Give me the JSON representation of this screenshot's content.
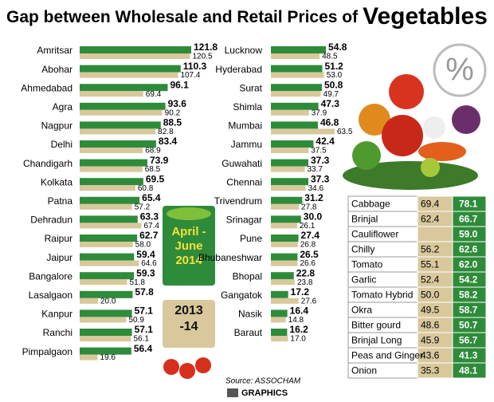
{
  "title": "Gap between Wholesale and Retail Prices of",
  "title_emphasis": "Vegetables",
  "percent_symbol": "%",
  "source": "Source: ASSOCHAM",
  "credit": "GRAPHICS",
  "chart_data": [
    {
      "type": "bar",
      "categories": [
        "Amritsar",
        "Abohar",
        "Ahmedabad",
        "Agra",
        "Nagpur",
        "Delhi",
        "Chandigarh",
        "Kolkata",
        "Patna",
        "Dehradun",
        "Raipur",
        "Jaipur",
        "Bangalore",
        "Lasalgaon",
        "Kanpur",
        "Ranchi",
        "Pimpalgaon"
      ],
      "series": [
        {
          "name": "April -June 2014",
          "color": "#2e8b3a",
          "values": [
            121.8,
            110.3,
            96.1,
            93.6,
            88.5,
            83.4,
            73.9,
            69.5,
            65.4,
            63.3,
            62.7,
            59.4,
            59.3,
            57.8,
            57.1,
            57.1,
            56.4
          ]
        },
        {
          "name": "2013 -14",
          "color": "#d8c89c",
          "values": [
            120.5,
            107.4,
            69.4,
            90.2,
            82.8,
            68.9,
            68.5,
            60.8,
            57.2,
            67.4,
            58,
            64.6,
            51.8,
            20,
            50.9,
            56.1,
            19.6
          ],
          "value_labels": [
            "120.5",
            "107.4",
            "69.4",
            "90.2",
            "82.8",
            "68.9",
            "68.5",
            "60.8",
            "57.2",
            "67.4",
            "58.0",
            "64.6",
            "51.8",
            "20.0",
            "50.9",
            "56.1",
            "19.6"
          ]
        }
      ]
    },
    {
      "type": "bar",
      "categories": [
        "Lucknow",
        "Hyderabad",
        "Surat",
        "Shimla",
        "Mumbai",
        "Jammu",
        "Guwahati",
        "Chennai",
        "Trivendrum",
        "Srinagar",
        "Pune",
        "Bhubaneshwar",
        "Bhopal",
        "Gangatok",
        "Nasik",
        "Baraut"
      ],
      "series": [
        {
          "color": "#2e8b3a",
          "values": [
            54.8,
            51.2,
            50.8,
            47.3,
            46.8,
            42.4,
            37.3,
            37.3,
            31.2,
            30,
            27.4,
            26.5,
            22.8,
            17.2,
            16.4,
            16.2
          ],
          "value_labels": [
            "54.8",
            "51.2",
            "50.8",
            "47.3",
            "46.8",
            "42.4",
            "37.3",
            "37.3",
            "31.2",
            "30.0",
            "27.4",
            "26.5",
            "22.8",
            "17.2",
            "16.4",
            "16.2"
          ]
        },
        {
          "color": "#d8c89c",
          "values": [
            48.5,
            53,
            49.7,
            37.9,
            63.5,
            37.5,
            33.7,
            34.6,
            27.8,
            26.1,
            26.8,
            26.6,
            23.8,
            27.6,
            14.8,
            17
          ],
          "value_labels": [
            "48.5",
            "53.0",
            "49.7",
            "37.9",
            "63.5",
            "37.5",
            "33.7",
            "34.6",
            "27.8",
            "26.1",
            "26.8",
            "26.6",
            "23.8",
            "27.6",
            "14.8",
            "17.0"
          ]
        }
      ]
    }
  ],
  "table": {
    "rows": [
      [
        "Cabbage",
        "69.4",
        "78.1"
      ],
      [
        "Brinjal",
        "62.4",
        "66.7"
      ],
      [
        "Cauliflower",
        null,
        "59.0"
      ],
      [
        "Chilly",
        "56.2",
        "62.6"
      ],
      [
        "Tomato",
        "55.1",
        "62.0"
      ],
      [
        "Garlic",
        "52.4",
        "54.2"
      ],
      [
        "Tomato Hybrid",
        "50.0",
        "58.2"
      ],
      [
        "Okra",
        "49.5",
        "58.7"
      ],
      [
        "Bitter gourd",
        "48.6",
        "50.7"
      ],
      [
        "Brinjal Long",
        "45.9",
        "56.7"
      ],
      [
        "Peas and Ginger",
        "43.6",
        "41.3"
      ],
      [
        "Onion",
        "35.3",
        "48.1"
      ]
    ]
  }
}
